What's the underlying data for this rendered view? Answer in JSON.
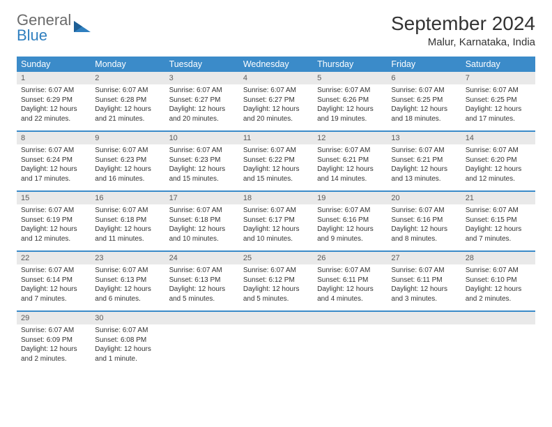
{
  "brand": {
    "text1": "General",
    "text2": "Blue"
  },
  "title": "September 2024",
  "location": "Malur, Karnataka, India",
  "colors": {
    "header_bg": "#3b8bc9",
    "header_text": "#ffffff",
    "daynum_bg": "#e9e9e9",
    "daynum_text": "#5a5a5a",
    "body_text": "#333333",
    "logo_gray": "#6b6b6b",
    "logo_blue": "#2f7fbf"
  },
  "day_names": [
    "Sunday",
    "Monday",
    "Tuesday",
    "Wednesday",
    "Thursday",
    "Friday",
    "Saturday"
  ],
  "weeks": [
    {
      "nums": [
        "1",
        "2",
        "3",
        "4",
        "5",
        "6",
        "7"
      ],
      "cells": [
        {
          "sunrise": "Sunrise: 6:07 AM",
          "sunset": "Sunset: 6:29 PM",
          "dl1": "Daylight: 12 hours",
          "dl2": "and 22 minutes."
        },
        {
          "sunrise": "Sunrise: 6:07 AM",
          "sunset": "Sunset: 6:28 PM",
          "dl1": "Daylight: 12 hours",
          "dl2": "and 21 minutes."
        },
        {
          "sunrise": "Sunrise: 6:07 AM",
          "sunset": "Sunset: 6:27 PM",
          "dl1": "Daylight: 12 hours",
          "dl2": "and 20 minutes."
        },
        {
          "sunrise": "Sunrise: 6:07 AM",
          "sunset": "Sunset: 6:27 PM",
          "dl1": "Daylight: 12 hours",
          "dl2": "and 20 minutes."
        },
        {
          "sunrise": "Sunrise: 6:07 AM",
          "sunset": "Sunset: 6:26 PM",
          "dl1": "Daylight: 12 hours",
          "dl2": "and 19 minutes."
        },
        {
          "sunrise": "Sunrise: 6:07 AM",
          "sunset": "Sunset: 6:25 PM",
          "dl1": "Daylight: 12 hours",
          "dl2": "and 18 minutes."
        },
        {
          "sunrise": "Sunrise: 6:07 AM",
          "sunset": "Sunset: 6:25 PM",
          "dl1": "Daylight: 12 hours",
          "dl2": "and 17 minutes."
        }
      ]
    },
    {
      "nums": [
        "8",
        "9",
        "10",
        "11",
        "12",
        "13",
        "14"
      ],
      "cells": [
        {
          "sunrise": "Sunrise: 6:07 AM",
          "sunset": "Sunset: 6:24 PM",
          "dl1": "Daylight: 12 hours",
          "dl2": "and 17 minutes."
        },
        {
          "sunrise": "Sunrise: 6:07 AM",
          "sunset": "Sunset: 6:23 PM",
          "dl1": "Daylight: 12 hours",
          "dl2": "and 16 minutes."
        },
        {
          "sunrise": "Sunrise: 6:07 AM",
          "sunset": "Sunset: 6:23 PM",
          "dl1": "Daylight: 12 hours",
          "dl2": "and 15 minutes."
        },
        {
          "sunrise": "Sunrise: 6:07 AM",
          "sunset": "Sunset: 6:22 PM",
          "dl1": "Daylight: 12 hours",
          "dl2": "and 15 minutes."
        },
        {
          "sunrise": "Sunrise: 6:07 AM",
          "sunset": "Sunset: 6:21 PM",
          "dl1": "Daylight: 12 hours",
          "dl2": "and 14 minutes."
        },
        {
          "sunrise": "Sunrise: 6:07 AM",
          "sunset": "Sunset: 6:21 PM",
          "dl1": "Daylight: 12 hours",
          "dl2": "and 13 minutes."
        },
        {
          "sunrise": "Sunrise: 6:07 AM",
          "sunset": "Sunset: 6:20 PM",
          "dl1": "Daylight: 12 hours",
          "dl2": "and 12 minutes."
        }
      ]
    },
    {
      "nums": [
        "15",
        "16",
        "17",
        "18",
        "19",
        "20",
        "21"
      ],
      "cells": [
        {
          "sunrise": "Sunrise: 6:07 AM",
          "sunset": "Sunset: 6:19 PM",
          "dl1": "Daylight: 12 hours",
          "dl2": "and 12 minutes."
        },
        {
          "sunrise": "Sunrise: 6:07 AM",
          "sunset": "Sunset: 6:18 PM",
          "dl1": "Daylight: 12 hours",
          "dl2": "and 11 minutes."
        },
        {
          "sunrise": "Sunrise: 6:07 AM",
          "sunset": "Sunset: 6:18 PM",
          "dl1": "Daylight: 12 hours",
          "dl2": "and 10 minutes."
        },
        {
          "sunrise": "Sunrise: 6:07 AM",
          "sunset": "Sunset: 6:17 PM",
          "dl1": "Daylight: 12 hours",
          "dl2": "and 10 minutes."
        },
        {
          "sunrise": "Sunrise: 6:07 AM",
          "sunset": "Sunset: 6:16 PM",
          "dl1": "Daylight: 12 hours",
          "dl2": "and 9 minutes."
        },
        {
          "sunrise": "Sunrise: 6:07 AM",
          "sunset": "Sunset: 6:16 PM",
          "dl1": "Daylight: 12 hours",
          "dl2": "and 8 minutes."
        },
        {
          "sunrise": "Sunrise: 6:07 AM",
          "sunset": "Sunset: 6:15 PM",
          "dl1": "Daylight: 12 hours",
          "dl2": "and 7 minutes."
        }
      ]
    },
    {
      "nums": [
        "22",
        "23",
        "24",
        "25",
        "26",
        "27",
        "28"
      ],
      "cells": [
        {
          "sunrise": "Sunrise: 6:07 AM",
          "sunset": "Sunset: 6:14 PM",
          "dl1": "Daylight: 12 hours",
          "dl2": "and 7 minutes."
        },
        {
          "sunrise": "Sunrise: 6:07 AM",
          "sunset": "Sunset: 6:13 PM",
          "dl1": "Daylight: 12 hours",
          "dl2": "and 6 minutes."
        },
        {
          "sunrise": "Sunrise: 6:07 AM",
          "sunset": "Sunset: 6:13 PM",
          "dl1": "Daylight: 12 hours",
          "dl2": "and 5 minutes."
        },
        {
          "sunrise": "Sunrise: 6:07 AM",
          "sunset": "Sunset: 6:12 PM",
          "dl1": "Daylight: 12 hours",
          "dl2": "and 5 minutes."
        },
        {
          "sunrise": "Sunrise: 6:07 AM",
          "sunset": "Sunset: 6:11 PM",
          "dl1": "Daylight: 12 hours",
          "dl2": "and 4 minutes."
        },
        {
          "sunrise": "Sunrise: 6:07 AM",
          "sunset": "Sunset: 6:11 PM",
          "dl1": "Daylight: 12 hours",
          "dl2": "and 3 minutes."
        },
        {
          "sunrise": "Sunrise: 6:07 AM",
          "sunset": "Sunset: 6:10 PM",
          "dl1": "Daylight: 12 hours",
          "dl2": "and 2 minutes."
        }
      ]
    },
    {
      "nums": [
        "29",
        "30",
        "",
        "",
        "",
        "",
        ""
      ],
      "cells": [
        {
          "sunrise": "Sunrise: 6:07 AM",
          "sunset": "Sunset: 6:09 PM",
          "dl1": "Daylight: 12 hours",
          "dl2": "and 2 minutes."
        },
        {
          "sunrise": "Sunrise: 6:07 AM",
          "sunset": "Sunset: 6:08 PM",
          "dl1": "Daylight: 12 hours",
          "dl2": "and 1 minute."
        },
        null,
        null,
        null,
        null,
        null
      ]
    }
  ]
}
